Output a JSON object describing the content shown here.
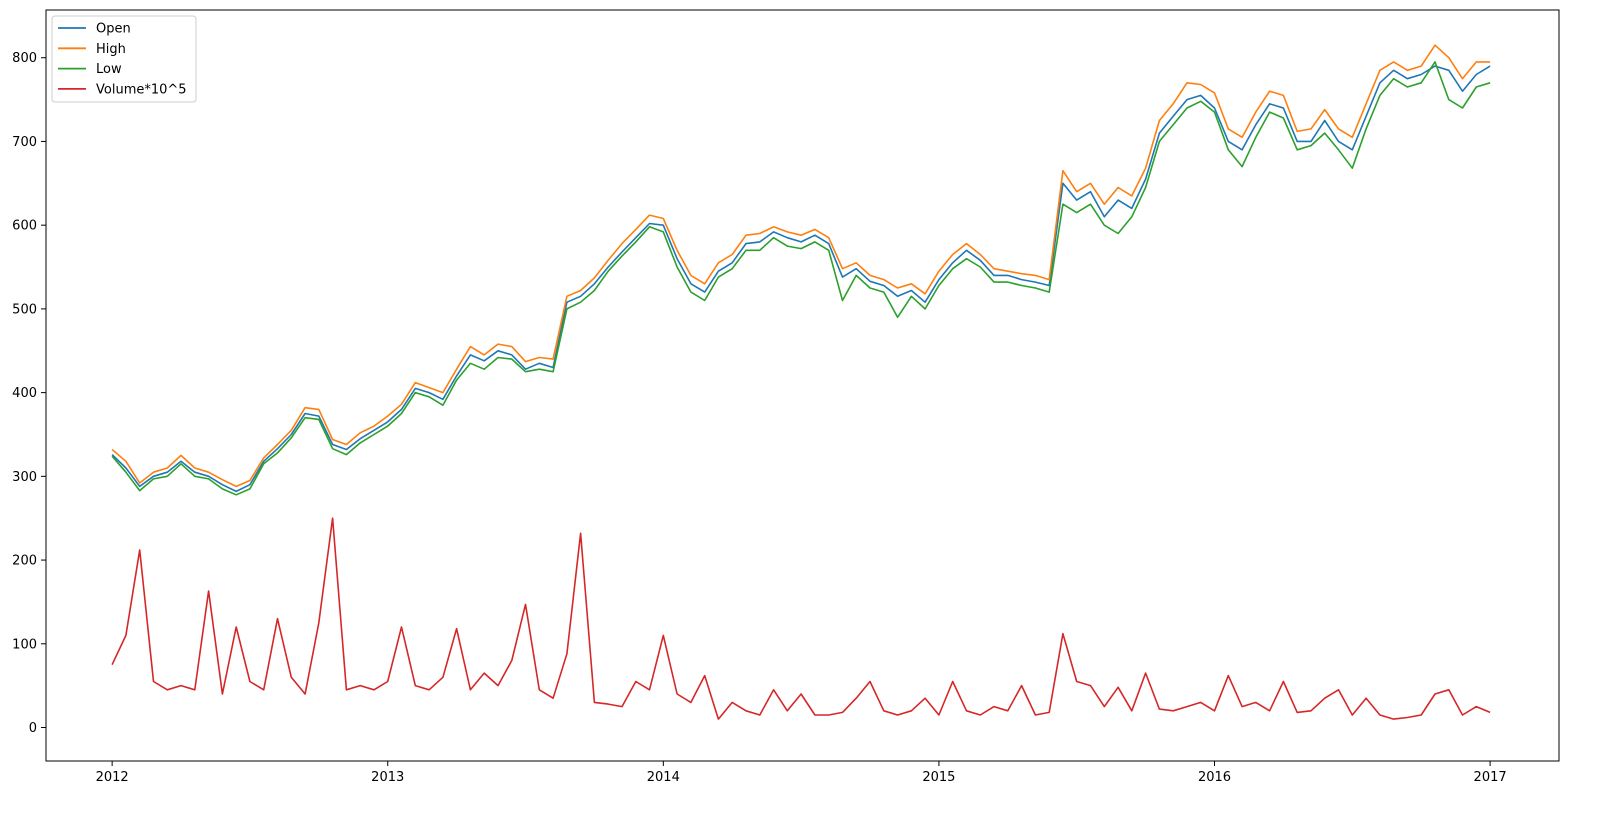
{
  "chart_data": {
    "type": "line",
    "title": "",
    "xlabel": "",
    "ylabel": "",
    "xlim": [
      2011.76,
      2017.25
    ],
    "ylim": [
      -40,
      857
    ],
    "x_ticks": [
      2012,
      2013,
      2014,
      2015,
      2016,
      2017
    ],
    "x_tick_labels": [
      "2012",
      "2013",
      "2014",
      "2015",
      "2016",
      "2017"
    ],
    "y_ticks": [
      0,
      100,
      200,
      300,
      400,
      500,
      600,
      700,
      800
    ],
    "y_tick_labels": [
      "0",
      "100",
      "200",
      "300",
      "400",
      "500",
      "600",
      "700",
      "800"
    ],
    "grid": false,
    "legend_position": "top-left",
    "x": [
      2012.0,
      2012.05,
      2012.1,
      2012.15,
      2012.2,
      2012.25,
      2012.3,
      2012.35,
      2012.4,
      2012.45,
      2012.5,
      2012.55,
      2012.6,
      2012.65,
      2012.7,
      2012.75,
      2012.8,
      2012.85,
      2012.9,
      2012.95,
      2013.0,
      2013.05,
      2013.1,
      2013.15,
      2013.2,
      2013.25,
      2013.3,
      2013.35,
      2013.4,
      2013.45,
      2013.5,
      2013.55,
      2013.6,
      2013.65,
      2013.7,
      2013.75,
      2013.8,
      2013.85,
      2013.9,
      2013.95,
      2014.0,
      2014.05,
      2014.1,
      2014.15,
      2014.2,
      2014.25,
      2014.3,
      2014.35,
      2014.4,
      2014.45,
      2014.5,
      2014.55,
      2014.6,
      2014.65,
      2014.7,
      2014.75,
      2014.8,
      2014.85,
      2014.9,
      2014.95,
      2015.0,
      2015.05,
      2015.1,
      2015.15,
      2015.2,
      2015.25,
      2015.3,
      2015.35,
      2015.4,
      2015.45,
      2015.5,
      2015.55,
      2015.6,
      2015.65,
      2015.7,
      2015.75,
      2015.8,
      2015.85,
      2015.9,
      2015.95,
      2016.0,
      2016.05,
      2016.1,
      2016.15,
      2016.2,
      2016.25,
      2016.3,
      2016.35,
      2016.4,
      2016.45,
      2016.5,
      2016.55,
      2016.6,
      2016.65,
      2016.7,
      2016.75,
      2016.8,
      2016.85,
      2016.9,
      2016.95,
      2017.0
    ],
    "series": [
      {
        "name": "Open",
        "color": "#1f77b4",
        "values": [
          326,
          310,
          288,
          300,
          305,
          318,
          305,
          300,
          290,
          282,
          290,
          318,
          333,
          350,
          375,
          372,
          338,
          332,
          345,
          355,
          365,
          380,
          405,
          400,
          392,
          420,
          445,
          438,
          450,
          445,
          428,
          435,
          430,
          508,
          515,
          530,
          550,
          568,
          585,
          602,
          600,
          560,
          530,
          520,
          545,
          555,
          578,
          580,
          592,
          585,
          580,
          588,
          578,
          538,
          548,
          533,
          528,
          515,
          522,
          508,
          535,
          555,
          570,
          558,
          540,
          540,
          535,
          532,
          528,
          650,
          630,
          640,
          610,
          630,
          620,
          655,
          710,
          730,
          750,
          755,
          740,
          700,
          690,
          720,
          745,
          740,
          700,
          700,
          725,
          700,
          690,
          730,
          770,
          785,
          775,
          780,
          790,
          785,
          760,
          780,
          790
        ]
      },
      {
        "name": "High",
        "color": "#ff7f0e",
        "values": [
          332,
          318,
          292,
          305,
          310,
          325,
          310,
          305,
          296,
          288,
          295,
          322,
          338,
          355,
          382,
          380,
          344,
          338,
          352,
          360,
          372,
          386,
          412,
          406,
          400,
          428,
          455,
          445,
          458,
          455,
          437,
          442,
          440,
          515,
          522,
          537,
          558,
          578,
          595,
          612,
          608,
          570,
          540,
          530,
          555,
          565,
          588,
          590,
          598,
          592,
          588,
          595,
          585,
          548,
          555,
          540,
          535,
          525,
          530,
          518,
          545,
          565,
          578,
          565,
          548,
          545,
          542,
          540,
          535,
          665,
          640,
          650,
          625,
          645,
          635,
          668,
          725,
          745,
          770,
          768,
          758,
          715,
          705,
          735,
          760,
          755,
          712,
          715,
          738,
          715,
          705,
          745,
          785,
          795,
          785,
          790,
          815,
          800,
          775,
          795,
          795
        ]
      },
      {
        "name": "Low",
        "color": "#2ca02c",
        "values": [
          324,
          305,
          283,
          297,
          300,
          315,
          300,
          297,
          285,
          278,
          285,
          315,
          328,
          346,
          370,
          368,
          333,
          326,
          340,
          350,
          360,
          375,
          400,
          395,
          385,
          415,
          435,
          428,
          442,
          440,
          425,
          428,
          425,
          500,
          508,
          522,
          545,
          563,
          580,
          598,
          592,
          550,
          520,
          510,
          538,
          548,
          570,
          570,
          585,
          575,
          572,
          580,
          570,
          510,
          540,
          525,
          520,
          490,
          515,
          500,
          528,
          548,
          560,
          550,
          532,
          532,
          528,
          525,
          520,
          625,
          615,
          625,
          600,
          590,
          610,
          645,
          700,
          720,
          740,
          748,
          735,
          690,
          670,
          705,
          735,
          728,
          690,
          695,
          710,
          690,
          668,
          715,
          755,
          775,
          765,
          770,
          795,
          750,
          740,
          765,
          770
        ]
      },
      {
        "name": "Volume*10^5",
        "color": "#d62728",
        "values": [
          75,
          110,
          212,
          55,
          45,
          50,
          45,
          163,
          40,
          120,
          55,
          45,
          130,
          60,
          40,
          125,
          250,
          45,
          50,
          45,
          55,
          120,
          50,
          45,
          60,
          118,
          45,
          65,
          50,
          80,
          147,
          45,
          35,
          88,
          232,
          30,
          28,
          25,
          55,
          45,
          110,
          40,
          30,
          62,
          10,
          30,
          20,
          15,
          45,
          20,
          40,
          15,
          15,
          18,
          35,
          55,
          20,
          15,
          20,
          35,
          15,
          55,
          20,
          15,
          25,
          20,
          50,
          15,
          18,
          112,
          55,
          50,
          25,
          48,
          20,
          65,
          22,
          20,
          25,
          30,
          20,
          62,
          25,
          30,
          20,
          55,
          18,
          20,
          35,
          45,
          15,
          35,
          15,
          10,
          12,
          15,
          40,
          45,
          15,
          25,
          18
        ]
      }
    ]
  }
}
